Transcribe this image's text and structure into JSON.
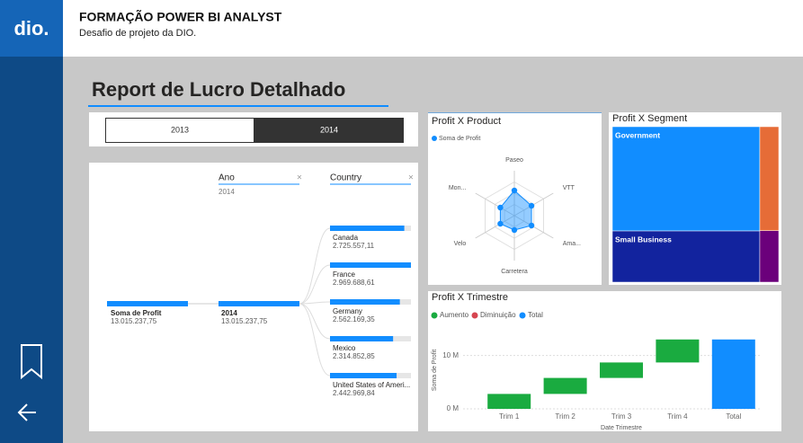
{
  "header": {
    "title": "FORMAÇÃO POWER BI ANALYST",
    "subtitle": "Desafio de projeto da DIO.",
    "logo": "dio."
  },
  "report_title": "Report de Lucro Detalhado",
  "slicer": {
    "options": [
      "2013",
      "2014"
    ],
    "selected": 1
  },
  "decomposition_tree": {
    "root": {
      "label": "Soma de Profit",
      "value": 13015237.75,
      "value_label": "13.015.237,75"
    },
    "levels": [
      {
        "header": "Ano",
        "filter": "2014",
        "nodes": [
          {
            "label": "2014",
            "value": 13015237.75,
            "value_label": "13.015.237,75"
          }
        ]
      },
      {
        "header": "Country",
        "nodes": [
          {
            "label": "Canada",
            "value": 2725557.11,
            "value_label": "2.725.557,11"
          },
          {
            "label": "France",
            "value": 2969688.61,
            "value_label": "2.969.688,61"
          },
          {
            "label": "Germany",
            "value": 2562169.35,
            "value_label": "2.562.169,35"
          },
          {
            "label": "Mexico",
            "value": 2314852.85,
            "value_label": "2.314.852,85"
          },
          {
            "label": "United States of Ameri...",
            "value": 2442969.84,
            "value_label": "2.442.969,84"
          }
        ]
      }
    ]
  },
  "chart_data": [
    {
      "type": "radar",
      "title": "Profit X Product",
      "categories": [
        "Paseo",
        "VTT",
        "Ama...",
        "Carretera",
        "Velo",
        "Mon..."
      ],
      "series": [
        {
          "name": "Soma de Profit",
          "color": "#118dff",
          "values": [
            2800000,
            2200000,
            2200000,
            1600000,
            1800000,
            1800000
          ]
        }
      ],
      "rlim": [
        0,
        5000000
      ]
    },
    {
      "type": "treemap",
      "title": "Profit X Segment",
      "categories": [
        "Government",
        "Small Business",
        null,
        null
      ],
      "values": [
        7740000,
        3800000,
        990000,
        490000
      ],
      "colors": [
        "#118dff",
        "#12239e",
        "#e66c37",
        "#6b007b"
      ]
    },
    {
      "type": "waterfall",
      "title": "Profit X Trimestre",
      "categories": [
        "Trim 1",
        "Trim 2",
        "Trim 3",
        "Trim 4",
        "Total"
      ],
      "values": [
        2800000,
        3000000,
        2900000,
        4315237,
        13015237
      ],
      "legend": [
        {
          "name": "Aumento",
          "color": "#1aab40"
        },
        {
          "name": "Diminuição",
          "color": "#d64550"
        },
        {
          "name": "Total",
          "color": "#118dff"
        }
      ],
      "x_label": "Date Trimestre",
      "y_label": "Soma de Profit",
      "ylim": [
        0,
        15000000
      ],
      "yticks": [
        {
          "value": 0,
          "label": "0 M"
        },
        {
          "value": 10000000,
          "label": "10 M"
        }
      ],
      "grid": true
    }
  ]
}
